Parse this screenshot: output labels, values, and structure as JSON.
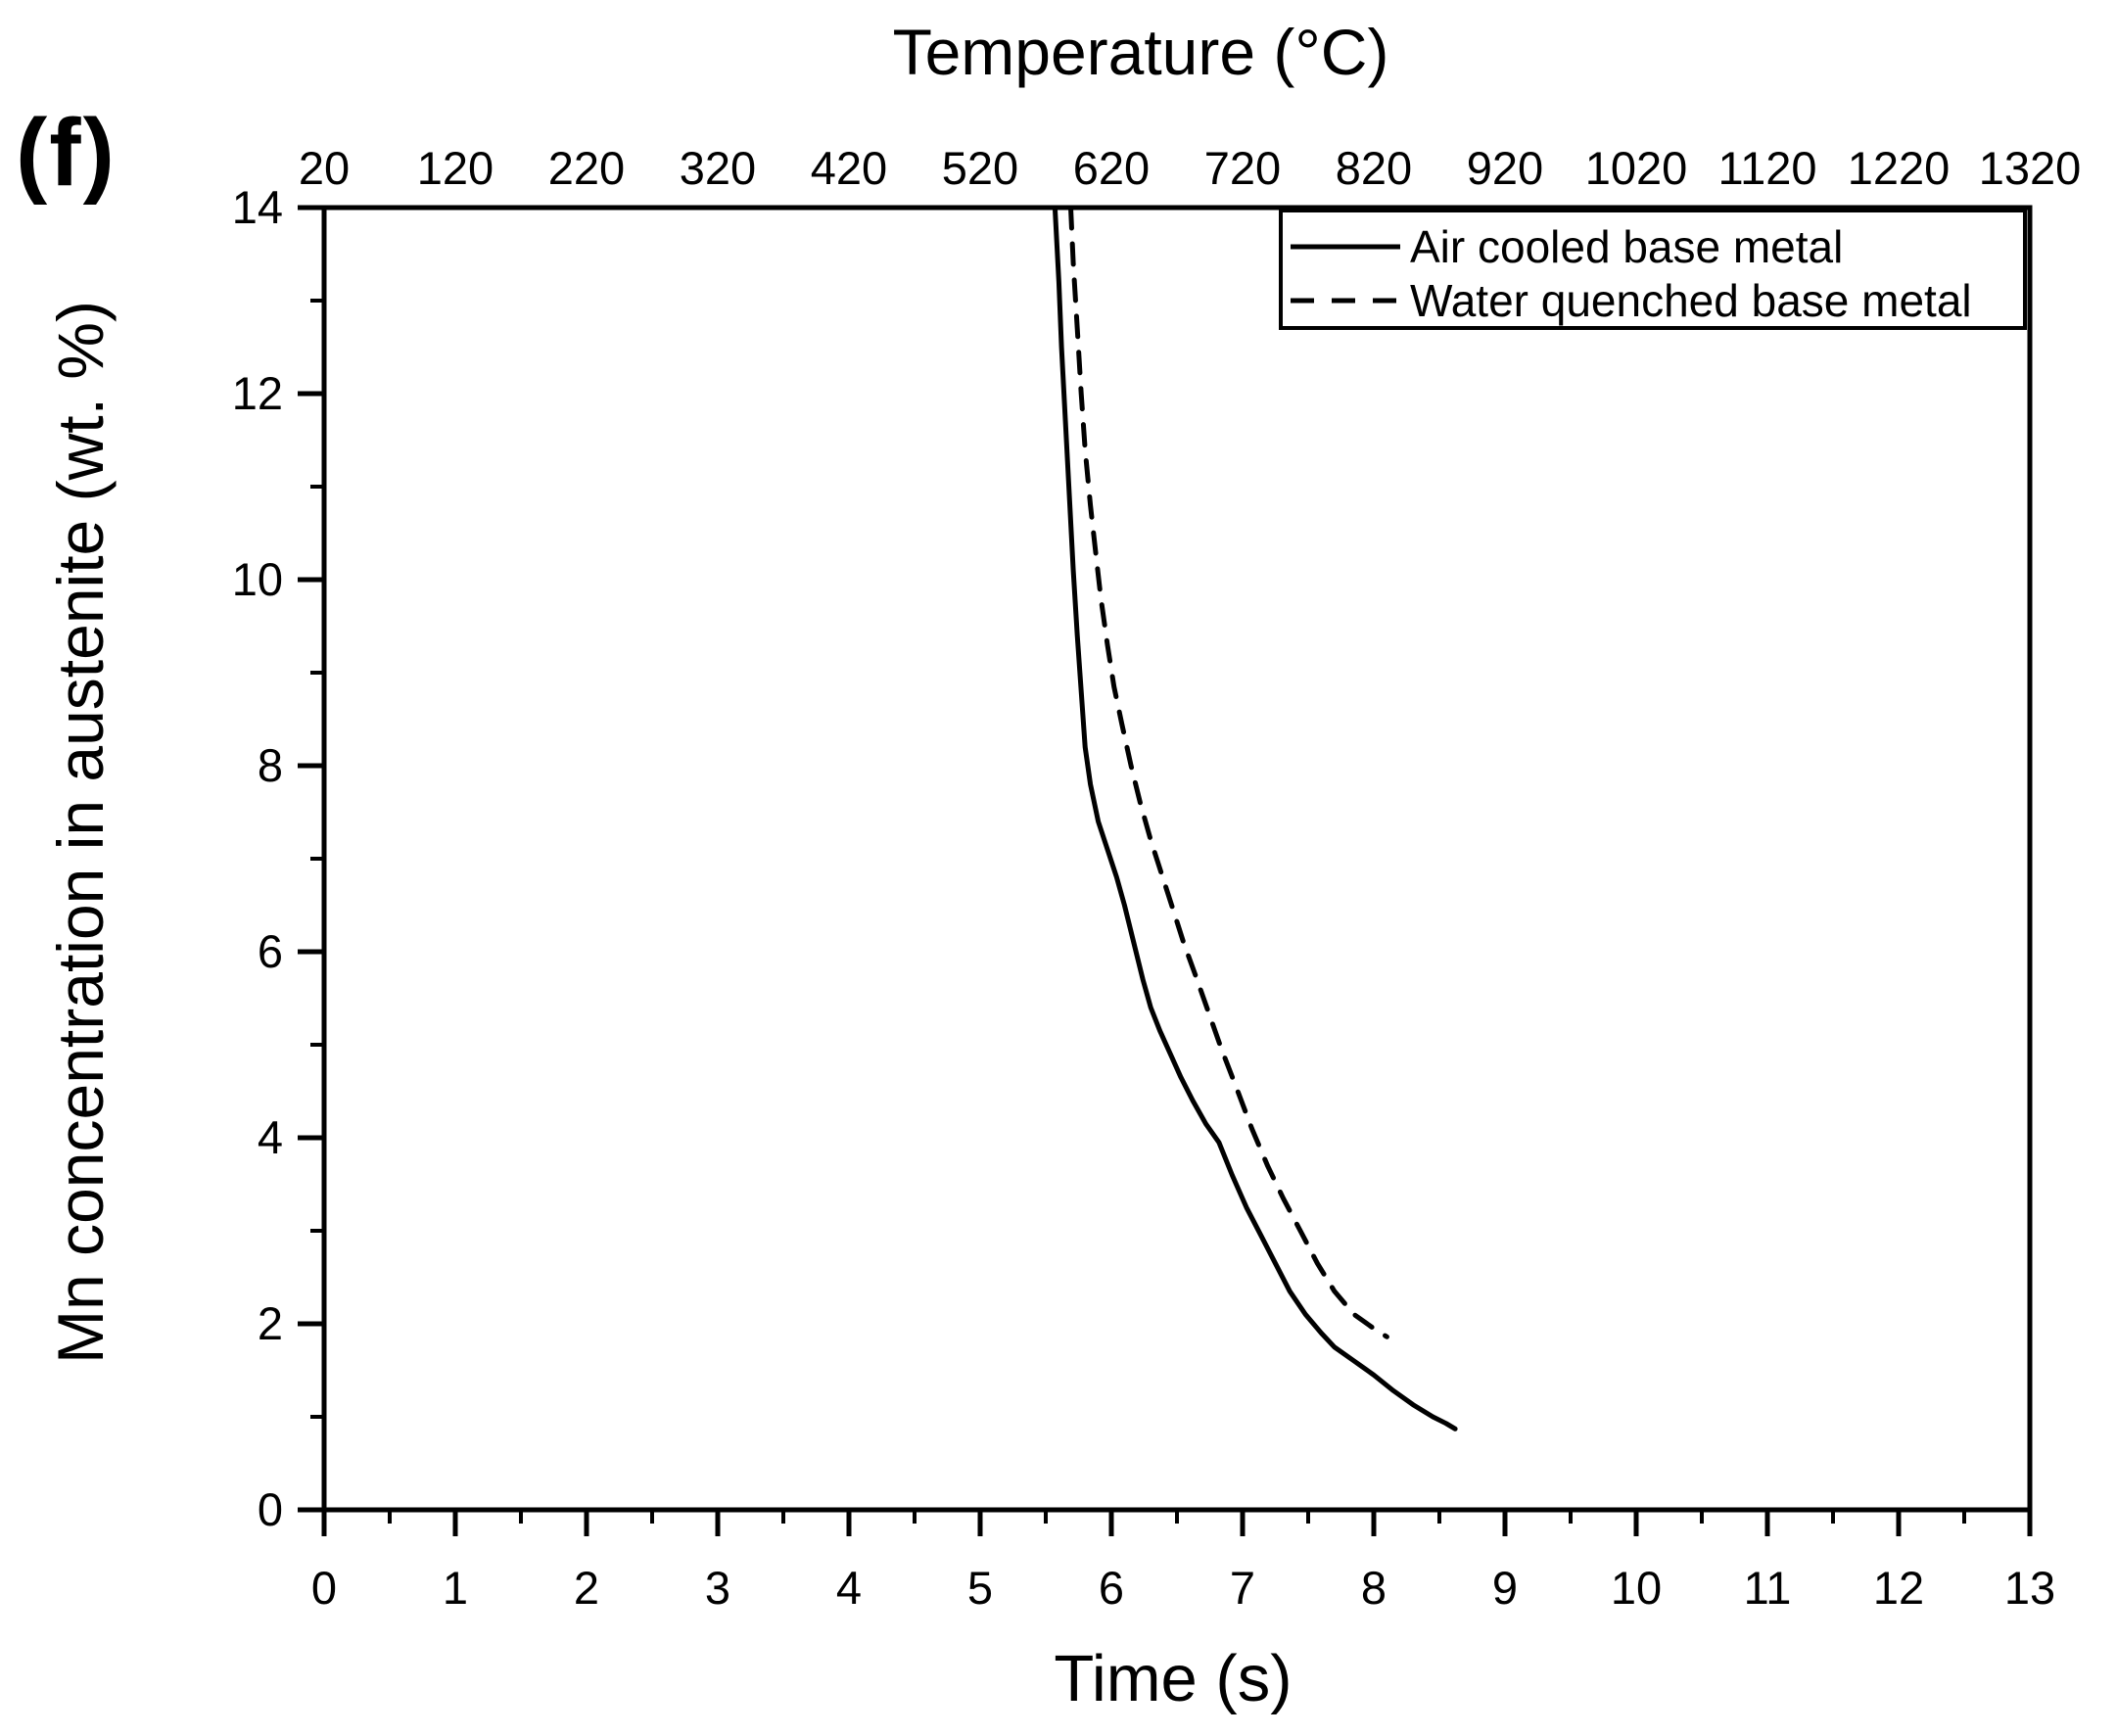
{
  "panel_label": "(f)",
  "colors": {
    "foreground": "#000000",
    "background": "#ffffff"
  },
  "top_axis": {
    "title": "Temperature (°C)",
    "tick_labels": [
      "20",
      "120",
      "220",
      "320",
      "420",
      "520",
      "620",
      "720",
      "820",
      "920",
      "1020",
      "1120",
      "1220",
      "1320"
    ]
  },
  "x_axis": {
    "title": "Time (s)",
    "tick_labels": [
      "0",
      "1",
      "2",
      "3",
      "4",
      "5",
      "6",
      "7",
      "8",
      "9",
      "10",
      "11",
      "12",
      "13"
    ]
  },
  "y_axis": {
    "title": "Mn concentration in austenite (wt. %)",
    "tick_labels": [
      "0",
      "2",
      "4",
      "6",
      "8",
      "10",
      "12",
      "14"
    ]
  },
  "legend": {
    "items": [
      {
        "label": "Air cooled base metal",
        "style": "solid"
      },
      {
        "label": "Water quenched base metal",
        "style": "dashed"
      }
    ]
  },
  "chart_data": {
    "type": "line",
    "title": "",
    "xlabel": "Time (s)",
    "ylabel": "Mn concentration in austenite (wt. %)",
    "top_xlabel": "Temperature (°C)",
    "xlim": [
      0,
      13
    ],
    "ylim": [
      0,
      14
    ],
    "top_xlim": [
      20,
      1320
    ],
    "x_major_ticks": [
      0,
      1,
      2,
      3,
      4,
      5,
      6,
      7,
      8,
      9,
      10,
      11,
      12,
      13
    ],
    "x_minor_ticks": [
      0.5,
      1.5,
      2.5,
      3.5,
      4.5,
      5.5,
      6.5,
      7.5,
      8.5,
      9.5,
      10.5,
      11.5,
      12.5
    ],
    "y_major_ticks": [
      0,
      2,
      4,
      6,
      8,
      10,
      12,
      14
    ],
    "y_minor_ticks": [
      1,
      3,
      5,
      7,
      9,
      11,
      13
    ],
    "top_ticks": [
      20,
      120,
      220,
      320,
      420,
      520,
      620,
      720,
      820,
      920,
      1020,
      1120,
      1220,
      1320
    ],
    "grid": false,
    "legend_position": "top-right",
    "series": [
      {
        "name": "Air cooled base metal",
        "style": "solid",
        "points": [
          [
            5.57,
            14.0
          ],
          [
            5.6,
            13.2
          ],
          [
            5.62,
            12.5
          ],
          [
            5.65,
            11.7
          ],
          [
            5.68,
            10.9
          ],
          [
            5.71,
            10.1
          ],
          [
            5.74,
            9.4
          ],
          [
            5.77,
            8.8
          ],
          [
            5.8,
            8.2
          ],
          [
            5.84,
            7.8
          ],
          [
            5.9,
            7.4
          ],
          [
            5.97,
            7.1
          ],
          [
            6.04,
            6.8
          ],
          [
            6.1,
            6.5
          ],
          [
            6.17,
            6.1
          ],
          [
            6.24,
            5.7
          ],
          [
            6.3,
            5.4
          ],
          [
            6.37,
            5.15
          ],
          [
            6.45,
            4.9
          ],
          [
            6.53,
            4.65
          ],
          [
            6.62,
            4.4
          ],
          [
            6.72,
            4.15
          ],
          [
            6.82,
            3.95
          ],
          [
            6.92,
            3.6
          ],
          [
            7.03,
            3.25
          ],
          [
            7.14,
            2.95
          ],
          [
            7.25,
            2.65
          ],
          [
            7.36,
            2.35
          ],
          [
            7.48,
            2.1
          ],
          [
            7.6,
            1.9
          ],
          [
            7.7,
            1.75
          ],
          [
            7.85,
            1.6
          ],
          [
            8.0,
            1.45
          ],
          [
            8.15,
            1.28
          ],
          [
            8.3,
            1.13
          ],
          [
            8.45,
            1.0
          ],
          [
            8.55,
            0.93
          ],
          [
            8.62,
            0.87
          ]
        ]
      },
      {
        "name": "Water quenched base metal",
        "style": "dashed",
        "points": [
          [
            5.69,
            14.0
          ],
          [
            5.71,
            13.4
          ],
          [
            5.74,
            12.7
          ],
          [
            5.77,
            12.0
          ],
          [
            5.8,
            11.4
          ],
          [
            5.84,
            10.8
          ],
          [
            5.88,
            10.3
          ],
          [
            5.92,
            9.8
          ],
          [
            5.97,
            9.3
          ],
          [
            6.02,
            8.85
          ],
          [
            6.08,
            8.45
          ],
          [
            6.15,
            8.0
          ],
          [
            6.22,
            7.6
          ],
          [
            6.3,
            7.2
          ],
          [
            6.38,
            6.85
          ],
          [
            6.46,
            6.5
          ],
          [
            6.55,
            6.1
          ],
          [
            6.64,
            5.75
          ],
          [
            6.74,
            5.35
          ],
          [
            6.84,
            4.95
          ],
          [
            6.95,
            4.55
          ],
          [
            7.07,
            4.1
          ],
          [
            7.19,
            3.7
          ],
          [
            7.31,
            3.35
          ],
          [
            7.44,
            3.0
          ],
          [
            7.57,
            2.65
          ],
          [
            7.7,
            2.35
          ],
          [
            7.85,
            2.1
          ],
          [
            8.0,
            1.95
          ],
          [
            8.1,
            1.86
          ]
        ]
      }
    ]
  }
}
